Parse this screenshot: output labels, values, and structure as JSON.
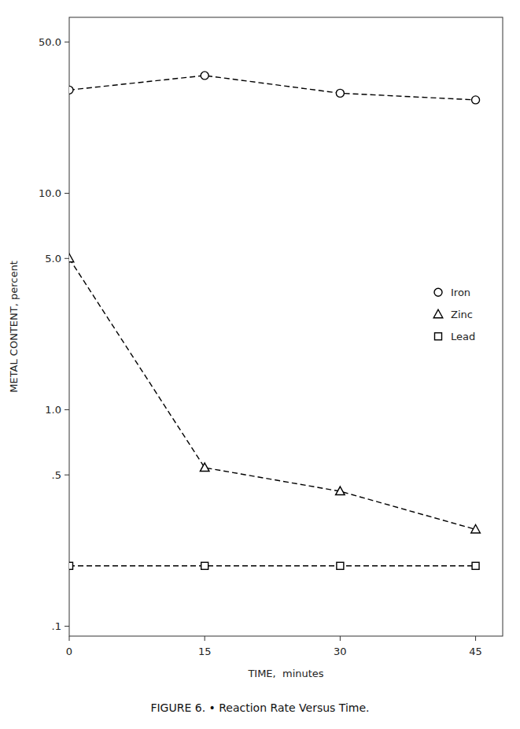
{
  "chart_data": {
    "type": "line",
    "title": "FIGURE 6. • Reaction Rate Versus Time.",
    "x_label": "TIME,  minutes",
    "y_label": "METAL CONTENT, percent",
    "x": [
      0,
      15,
      30,
      45
    ],
    "series": [
      {
        "name": "Iron",
        "color": "#000000",
        "marker": "circle",
        "line_style": "dashed",
        "values": [
          30.0,
          35.0,
          29.0,
          27.0
        ]
      },
      {
        "name": "Zinc",
        "color": "#000000",
        "marker": "triangle",
        "line_style": "dashed",
        "values": [
          5.0,
          0.54,
          0.42,
          0.28
        ]
      },
      {
        "name": "Lead",
        "color": "#000000",
        "marker": "square",
        "line_style": "dashed",
        "values": [
          0.19,
          0.19,
          0.19,
          0.19
        ]
      }
    ],
    "log": "y",
    "xlim": [
      0,
      48
    ],
    "ylim": [
      0.09,
      65.0
    ],
    "xticks": [
      0,
      15,
      30,
      45
    ],
    "yticks": [
      {
        "value": 0.1,
        "label": ".1"
      },
      {
        "value": 0.5,
        "label": ".5"
      },
      {
        "value": 1.0,
        "label": "1.0"
      },
      {
        "value": 5.0,
        "label": "5.0"
      },
      {
        "value": 10.0,
        "label": "10.0"
      },
      {
        "value": 50.0,
        "label": "50.0"
      }
    ],
    "grid": false,
    "legend": "right"
  }
}
